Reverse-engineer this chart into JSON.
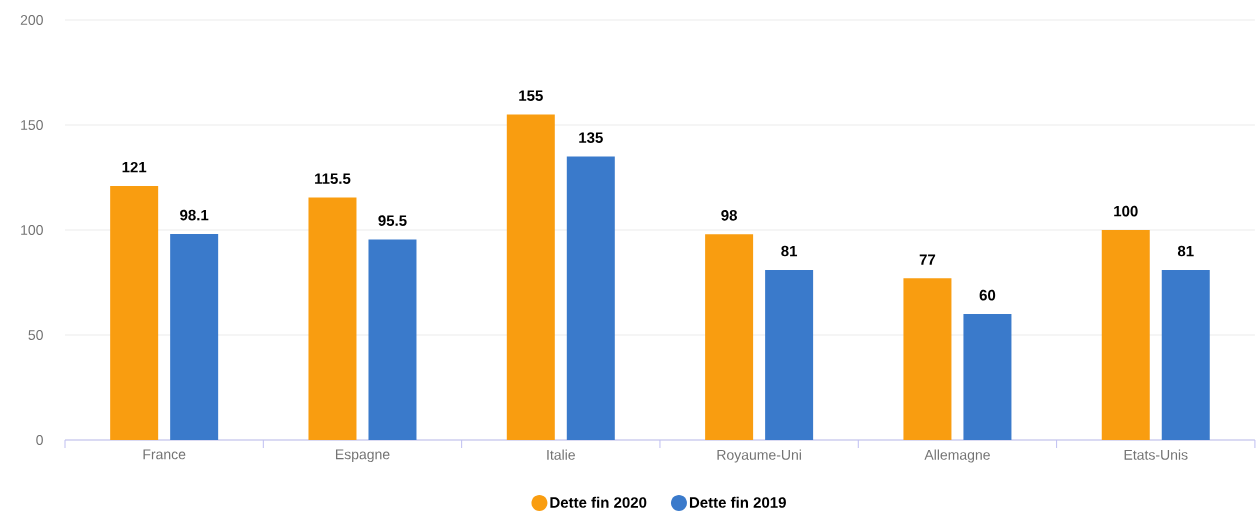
{
  "chart_data": {
    "type": "bar",
    "categories": [
      "France",
      "Espagne",
      "Italie",
      "Royaume-Uni",
      "Allemagne",
      "Etats-Unis"
    ],
    "series": [
      {
        "name": "Dette fin 2020",
        "color": "#f99d10",
        "values": [
          121,
          115.5,
          155,
          98,
          77,
          100
        ]
      },
      {
        "name": "Dette fin 2019",
        "color": "#3a7acb",
        "values": [
          98.1,
          95.5,
          135,
          81,
          60,
          81
        ]
      }
    ],
    "ylim": [
      0,
      200
    ],
    "yticks": [
      0,
      50,
      100,
      150,
      200
    ],
    "grid": "y",
    "legend": "bottom",
    "data_labels": true
  }
}
